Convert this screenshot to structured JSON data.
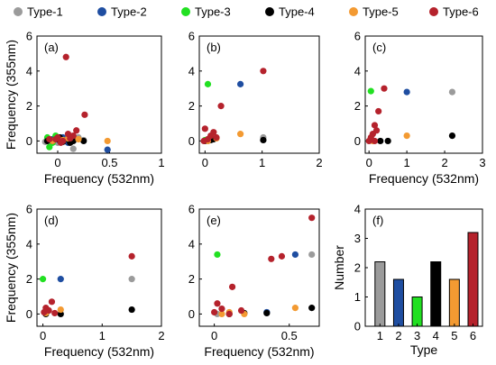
{
  "legend": [
    {
      "label": "Type-1",
      "color": "#9b9b9b"
    },
    {
      "label": "Type-2",
      "color": "#1f4ea1"
    },
    {
      "label": "Type-3",
      "color": "#22e022"
    },
    {
      "label": "Type-4",
      "color": "#000000"
    },
    {
      "label": "Type-5",
      "color": "#f39a32"
    },
    {
      "label": "Type-6",
      "color": "#b5222c"
    }
  ],
  "chart_data": [
    {
      "panel_label": "(a)",
      "type": "scatter",
      "xlabel": "Frequency  (532nm)",
      "ylabel": "Frequency  (355nm)",
      "xlim": [
        -0.2,
        1
      ],
      "ylim": [
        -0.7,
        6
      ],
      "xticks": [
        0,
        0.5,
        1
      ],
      "yticks": [
        0,
        2,
        4,
        6
      ],
      "series": [
        {
          "name": "Type-1",
          "color": "#9b9b9b",
          "points": [
            [
              -0.1,
              0.15
            ],
            [
              -0.05,
              0.05
            ],
            [
              0.0,
              -0.1
            ],
            [
              0.08,
              0.1
            ],
            [
              0.15,
              -0.45
            ],
            [
              0.2,
              0.2
            ],
            [
              -0.12,
              -0.05
            ],
            [
              0.25,
              0.05
            ]
          ]
        },
        {
          "name": "Type-2",
          "color": "#1f4ea1",
          "points": [
            [
              -0.05,
              0.1
            ],
            [
              0.05,
              0.2
            ],
            [
              0.1,
              -0.1
            ],
            [
              0.48,
              -0.5
            ],
            [
              0.02,
              0.0
            ]
          ]
        },
        {
          "name": "Type-3",
          "color": "#22e022",
          "points": [
            [
              -0.1,
              0.2
            ],
            [
              -0.05,
              -0.1
            ],
            [
              0.0,
              0.1
            ],
            [
              -0.02,
              0.3
            ],
            [
              -0.08,
              -0.35
            ],
            [
              0.05,
              0.0
            ]
          ]
        },
        {
          "name": "Type-4",
          "color": "#000000",
          "points": [
            [
              -0.05,
              0.0
            ],
            [
              0.0,
              0.1
            ],
            [
              0.05,
              -0.05
            ],
            [
              0.1,
              0.1
            ],
            [
              0.15,
              0.0
            ],
            [
              0.25,
              0.0
            ],
            [
              -0.1,
              0.0
            ],
            [
              0.02,
              0.2
            ],
            [
              0.12,
              -0.1
            ]
          ]
        },
        {
          "name": "Type-5",
          "color": "#f39a32",
          "points": [
            [
              0.48,
              0.0
            ],
            [
              0.05,
              0.05
            ],
            [
              0.1,
              0.15
            ],
            [
              -0.05,
              0.0
            ],
            [
              0.2,
              0.1
            ]
          ]
        },
        {
          "name": "Type-6",
          "color": "#b5222c",
          "points": [
            [
              0.08,
              4.8
            ],
            [
              0.26,
              1.5
            ],
            [
              0.18,
              0.6
            ],
            [
              0.1,
              0.4
            ],
            [
              0.0,
              0.2
            ],
            [
              -0.08,
              0.1
            ],
            [
              0.05,
              0.0
            ],
            [
              0.15,
              0.3
            ],
            [
              -0.02,
              0.1
            ],
            [
              0.03,
              -0.1
            ],
            [
              0.12,
              0.15
            ]
          ]
        }
      ]
    },
    {
      "panel_label": "(b)",
      "type": "scatter",
      "xlabel": "",
      "ylabel": "",
      "xlim": [
        -0.1,
        2
      ],
      "ylim": [
        -0.7,
        6
      ],
      "xticks": [
        0,
        1,
        2
      ],
      "yticks": [
        0,
        2,
        4,
        6
      ],
      "series": [
        {
          "name": "Type-1",
          "color": "#9b9b9b",
          "points": [
            [
              1.02,
              0.2
            ],
            [
              0.05,
              0.05
            ],
            [
              0.1,
              0.1
            ]
          ]
        },
        {
          "name": "Type-2",
          "color": "#1f4ea1",
          "points": [
            [
              0.62,
              3.25
            ],
            [
              0.1,
              0.1
            ],
            [
              0.05,
              0.0
            ]
          ]
        },
        {
          "name": "Type-3",
          "color": "#22e022",
          "points": [
            [
              0.05,
              3.25
            ],
            [
              0.0,
              0.05
            ],
            [
              0.08,
              0.15
            ]
          ]
        },
        {
          "name": "Type-4",
          "color": "#000000",
          "points": [
            [
              1.02,
              0.05
            ],
            [
              0.0,
              0.0
            ],
            [
              0.1,
              0.05
            ],
            [
              0.15,
              0.1
            ]
          ]
        },
        {
          "name": "Type-5",
          "color": "#f39a32",
          "points": [
            [
              0.62,
              0.4
            ],
            [
              0.2,
              0.15
            ],
            [
              0.05,
              0.0
            ]
          ]
        },
        {
          "name": "Type-6",
          "color": "#b5222c",
          "points": [
            [
              1.02,
              4.0
            ],
            [
              0.28,
              2.0
            ],
            [
              0.0,
              0.7
            ],
            [
              0.15,
              0.5
            ],
            [
              0.1,
              0.3
            ],
            [
              0.05,
              0.1
            ],
            [
              0.2,
              0.2
            ],
            [
              -0.02,
              0.0
            ]
          ]
        }
      ]
    },
    {
      "panel_label": "(c)",
      "type": "scatter",
      "xlabel": "Frequency  (532nm)",
      "ylabel": "",
      "xlim": [
        -0.1,
        3
      ],
      "ylim": [
        -0.7,
        6
      ],
      "xticks": [
        0,
        1,
        2,
        3
      ],
      "yticks": [
        0,
        2,
        4,
        6
      ],
      "series": [
        {
          "name": "Type-1",
          "color": "#9b9b9b",
          "points": [
            [
              2.2,
              2.8
            ]
          ]
        },
        {
          "name": "Type-2",
          "color": "#1f4ea1",
          "points": [
            [
              1.0,
              2.8
            ]
          ]
        },
        {
          "name": "Type-3",
          "color": "#22e022",
          "points": [
            [
              0.05,
              2.85
            ]
          ]
        },
        {
          "name": "Type-4",
          "color": "#000000",
          "points": [
            [
              2.2,
              0.3
            ],
            [
              0.3,
              0.0
            ],
            [
              0.5,
              0.0
            ]
          ]
        },
        {
          "name": "Type-5",
          "color": "#f39a32",
          "points": [
            [
              1.0,
              0.3
            ],
            [
              0.1,
              0.0
            ]
          ]
        },
        {
          "name": "Type-6",
          "color": "#b5222c",
          "points": [
            [
              0.4,
              3.0
            ],
            [
              0.25,
              1.7
            ],
            [
              0.15,
              0.9
            ],
            [
              0.2,
              0.6
            ],
            [
              0.1,
              0.4
            ],
            [
              0.05,
              0.2
            ],
            [
              0.15,
              0.0
            ],
            [
              0.0,
              0.0
            ]
          ]
        }
      ]
    },
    {
      "panel_label": "(d)",
      "type": "scatter",
      "xlabel": "Frequency  (532nm)",
      "ylabel": "Frequency  (355nm)",
      "xlim": [
        -0.1,
        2
      ],
      "ylim": [
        -0.7,
        6
      ],
      "xticks": [
        0,
        1,
        2
      ],
      "yticks": [
        0,
        2,
        4,
        6
      ],
      "series": [
        {
          "name": "Type-1",
          "color": "#9b9b9b",
          "points": [
            [
              1.5,
              2.0
            ]
          ]
        },
        {
          "name": "Type-2",
          "color": "#1f4ea1",
          "points": [
            [
              0.3,
              2.0
            ]
          ]
        },
        {
          "name": "Type-3",
          "color": "#22e022",
          "points": [
            [
              0.0,
              2.0
            ]
          ]
        },
        {
          "name": "Type-4",
          "color": "#000000",
          "points": [
            [
              1.5,
              0.25
            ],
            [
              0.3,
              0.0
            ],
            [
              0.05,
              0.0
            ]
          ]
        },
        {
          "name": "Type-5",
          "color": "#f39a32",
          "points": [
            [
              0.3,
              0.25
            ],
            [
              0.05,
              0.05
            ]
          ]
        },
        {
          "name": "Type-6",
          "color": "#b5222c",
          "points": [
            [
              1.5,
              3.3
            ],
            [
              0.15,
              0.7
            ],
            [
              0.05,
              0.35
            ],
            [
              0.1,
              0.2
            ],
            [
              0.02,
              0.1
            ],
            [
              0.2,
              0.05
            ]
          ]
        }
      ]
    },
    {
      "panel_label": "(e)",
      "type": "scatter",
      "xlabel": "Frequency  (532nm)",
      "ylabel": "",
      "xlim": [
        -0.1,
        0.7
      ],
      "ylim": [
        -0.7,
        6
      ],
      "xticks": [
        0,
        0.5
      ],
      "yticks": [
        0,
        2,
        4,
        6
      ],
      "series": [
        {
          "name": "Type-1",
          "color": "#9b9b9b",
          "points": [
            [
              0.65,
              3.4
            ],
            [
              0.02,
              0.0
            ],
            [
              0.35,
              0.1
            ]
          ]
        },
        {
          "name": "Type-2",
          "color": "#1f4ea1",
          "points": [
            [
              0.54,
              3.4
            ],
            [
              0.35,
              0.1
            ]
          ]
        },
        {
          "name": "Type-3",
          "color": "#22e022",
          "points": [
            [
              0.02,
              3.4
            ]
          ]
        },
        {
          "name": "Type-4",
          "color": "#000000",
          "points": [
            [
              0.65,
              0.35
            ],
            [
              0.35,
              0.05
            ],
            [
              0.1,
              0.0
            ],
            [
              0.2,
              0.05
            ]
          ]
        },
        {
          "name": "Type-5",
          "color": "#f39a32",
          "points": [
            [
              0.54,
              0.35
            ],
            [
              0.1,
              0.1
            ],
            [
              0.05,
              0.0
            ],
            [
              0.2,
              0.0
            ]
          ]
        },
        {
          "name": "Type-6",
          "color": "#b5222c",
          "points": [
            [
              0.65,
              5.5
            ],
            [
              0.45,
              3.3
            ],
            [
              0.38,
              3.15
            ],
            [
              0.12,
              1.55
            ],
            [
              0.02,
              0.6
            ],
            [
              0.05,
              0.3
            ],
            [
              0.0,
              0.1
            ],
            [
              0.1,
              0.0
            ],
            [
              0.18,
              0.2
            ]
          ]
        }
      ]
    },
    {
      "panel_label": "(f)",
      "type": "bar",
      "xlabel": "Type",
      "ylabel": "Number",
      "categories": [
        "1",
        "2",
        "3",
        "4",
        "5",
        "6"
      ],
      "values": [
        2.2,
        1.6,
        1.0,
        2.2,
        1.6,
        3.2
      ],
      "colors": [
        "#9b9b9b",
        "#1f4ea1",
        "#22e022",
        "#000000",
        "#f39a32",
        "#b5222c"
      ],
      "ylim": [
        0,
        4
      ],
      "yticks": [
        0,
        1,
        2,
        3,
        4
      ]
    }
  ]
}
